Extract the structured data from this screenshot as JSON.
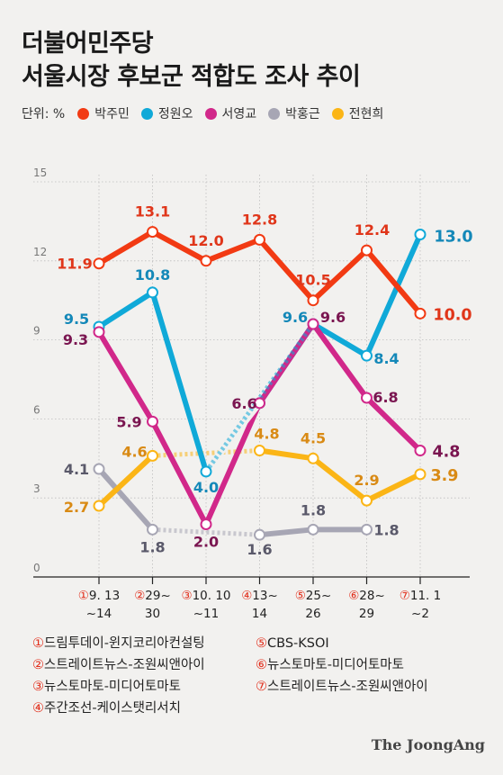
{
  "title_lines": [
    "더불어민주당",
    "서울시장 후보군 적합도 조사 추이"
  ],
  "unit_label": "단위: %",
  "legend": [
    {
      "name": "박주민",
      "color": "#f23a13"
    },
    {
      "name": "정원오",
      "color": "#10a9d8"
    },
    {
      "name": "서영교",
      "color": "#d1288a"
    },
    {
      "name": "박홍근",
      "color": "#a7a6b4"
    },
    {
      "name": "전현희",
      "color": "#fbb516"
    }
  ],
  "chart_data": {
    "type": "line",
    "ylim": [
      0,
      15
    ],
    "yticks": [
      0,
      3,
      6,
      9,
      12,
      15
    ],
    "grid": true,
    "categories": [
      {
        "num": "①",
        "line1": "9. 13",
        "line2": "~14"
      },
      {
        "num": "②",
        "line1": "29~",
        "line2": "30"
      },
      {
        "num": "③",
        "line1": "10. 10",
        "line2": "~11"
      },
      {
        "num": "④",
        "line1": "13~",
        "line2": "14"
      },
      {
        "num": "⑤",
        "line1": "25~",
        "line2": "26"
      },
      {
        "num": "⑥",
        "line1": "28~",
        "line2": "29"
      },
      {
        "num": "⑦",
        "line1": "11. 1",
        "line2": "~2"
      }
    ],
    "series": [
      {
        "name": "박주민",
        "color": "#f23a13",
        "label_color": "#e0361a",
        "values": [
          11.9,
          13.1,
          12.0,
          12.8,
          10.5,
          12.4,
          10.0
        ],
        "labels": [
          "11.9",
          "13.1",
          "12.0",
          "12.8",
          "10.5",
          "12.4",
          "10.0"
        ]
      },
      {
        "name": "정원오",
        "color": "#10a9d8",
        "label_color": "#1488b8",
        "values": [
          9.5,
          10.8,
          4.0,
          6.6,
          9.6,
          8.4,
          13.0
        ],
        "labels": [
          "9.5",
          "10.8",
          "4.0",
          null,
          "9.6",
          "8.4",
          "13.0"
        ]
      },
      {
        "name": "서영교",
        "color": "#d1288a",
        "label_color": "#7a1550",
        "values": [
          9.3,
          5.9,
          2.0,
          6.6,
          9.6,
          6.8,
          4.8
        ],
        "labels": [
          "9.3",
          "5.9",
          "2.0",
          "6.6",
          "9.6",
          "6.8",
          "4.8"
        ]
      },
      {
        "name": "박홍근",
        "color": "#a7a6b4",
        "label_color": "#5a596a",
        "values": [
          4.1,
          1.8,
          null,
          1.6,
          1.8,
          1.8,
          null
        ],
        "labels": [
          "4.1",
          "1.8",
          null,
          "1.6",
          "1.8",
          "1.8",
          null
        ]
      },
      {
        "name": "전현희",
        "color": "#fbb516",
        "label_color": "#d98a14",
        "values": [
          2.7,
          4.6,
          null,
          4.8,
          4.5,
          2.9,
          3.9
        ],
        "labels": [
          "2.7",
          "4.6",
          null,
          "4.8",
          "4.5",
          "2.9",
          "3.9"
        ]
      }
    ]
  },
  "sources": [
    {
      "num": "①",
      "text": "드림투데이-윈지코리아컨설팅"
    },
    {
      "num": "②",
      "text": "스트레이트뉴스-조원씨앤아이"
    },
    {
      "num": "③",
      "text": "뉴스토마토-미디어토마토"
    },
    {
      "num": "④",
      "text": "주간조선-케이스탯리서치"
    },
    {
      "num": "⑤",
      "text": "CBS-KSOI"
    },
    {
      "num": "⑥",
      "text": "뉴스토마토-미디어토마토"
    },
    {
      "num": "⑦",
      "text": "스트레이트뉴스-조원씨앤아이"
    }
  ],
  "brand": "The JoongAng"
}
